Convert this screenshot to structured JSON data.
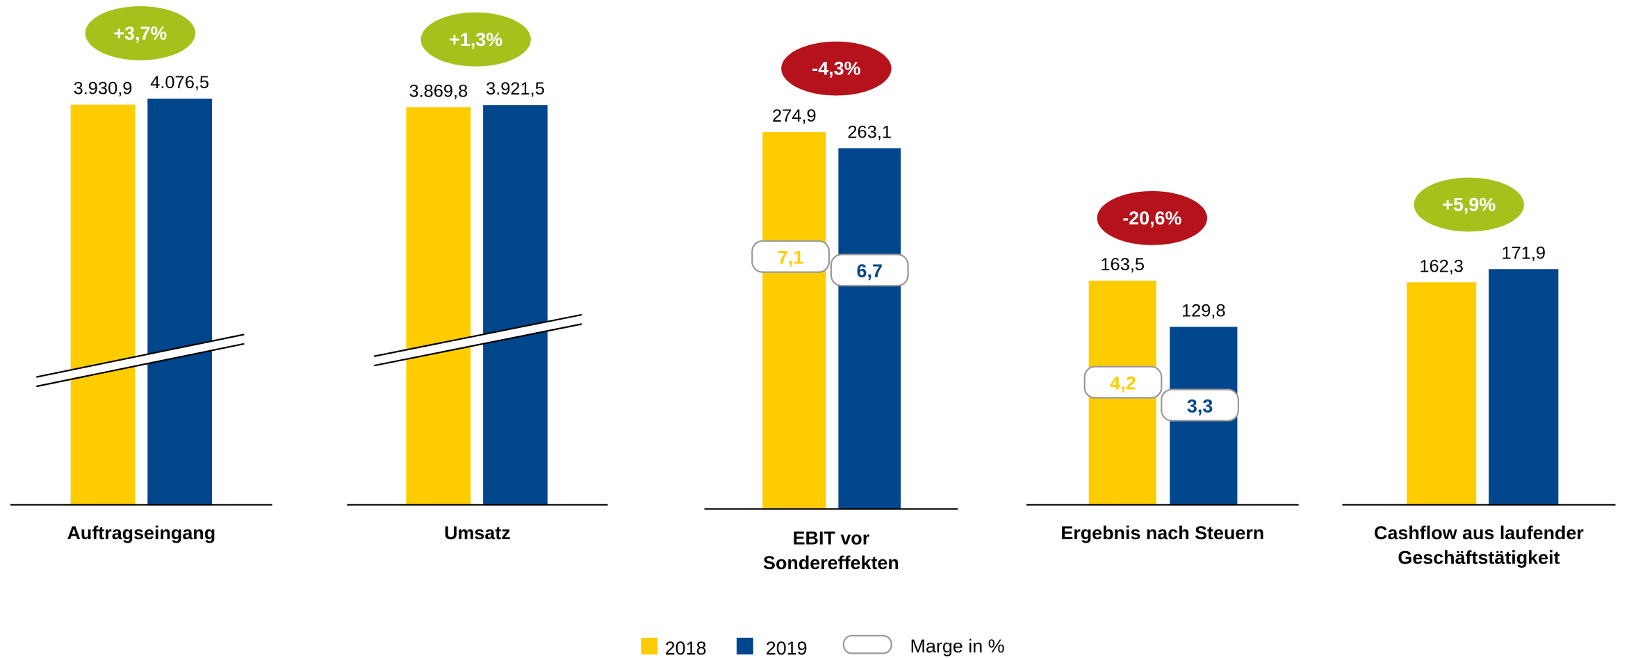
{
  "chart_data": [
    {
      "type": "bar",
      "title": [
        "Auftragseingang"
      ],
      "axis_break": true,
      "change": {
        "value": 3.7,
        "label": "+3,7%"
      },
      "change_color": "#A5C21C",
      "series": [
        {
          "name": "2018",
          "color": "#FFCC00",
          "values": [
            3930.9
          ],
          "value_labels": [
            "3.930,9"
          ]
        },
        {
          "name": "2019",
          "color": "#00468C",
          "values": [
            4076.5
          ],
          "value_labels": [
            "4.076,5"
          ]
        }
      ]
    },
    {
      "type": "bar",
      "title": [
        "Umsatz"
      ],
      "axis_break": true,
      "change": {
        "value": 1.3,
        "label": "+1,3%"
      },
      "change_color": "#A5C21C",
      "series": [
        {
          "name": "2018",
          "color": "#FFCC00",
          "values": [
            3869.8
          ],
          "value_labels": [
            "3.869,8"
          ]
        },
        {
          "name": "2019",
          "color": "#00468C",
          "values": [
            3921.5
          ],
          "value_labels": [
            "3.921,5"
          ]
        }
      ]
    },
    {
      "type": "bar",
      "title": [
        "EBIT vor",
        "Sondereffekten"
      ],
      "axis_break": false,
      "change": {
        "value": -4.3,
        "label": "-4,3%"
      },
      "change_color": "#B5121B",
      "series": [
        {
          "name": "2018",
          "color": "#FFCC00",
          "values": [
            274.9
          ],
          "value_labels": [
            "274,9"
          ],
          "margins": [
            7.1
          ],
          "margin_labels": [
            "7,1"
          ]
        },
        {
          "name": "2019",
          "color": "#00468C",
          "values": [
            263.1
          ],
          "value_labels": [
            "263,1"
          ],
          "margins": [
            6.7
          ],
          "margin_labels": [
            "6,7"
          ]
        }
      ]
    },
    {
      "type": "bar",
      "title": [
        "Ergebnis nach Steuern"
      ],
      "axis_break": false,
      "change": {
        "value": -20.6,
        "label": "-20,6%"
      },
      "change_color": "#B5121B",
      "series": [
        {
          "name": "2018",
          "color": "#FFCC00",
          "values": [
            163.5
          ],
          "value_labels": [
            "163,5"
          ],
          "margins": [
            4.2
          ],
          "margin_labels": [
            "4,2"
          ]
        },
        {
          "name": "2019",
          "color": "#00468C",
          "values": [
            129.8
          ],
          "value_labels": [
            "129,8"
          ],
          "margins": [
            3.3
          ],
          "margin_labels": [
            "3,3"
          ]
        }
      ]
    },
    {
      "type": "bar",
      "title": [
        "Cashflow aus laufender",
        "Geschäftstätigkeit"
      ],
      "axis_break": false,
      "change": {
        "value": 5.9,
        "label": "+5,9%"
      },
      "change_color": "#A5C21C",
      "series": [
        {
          "name": "2018",
          "color": "#FFCC00",
          "values": [
            162.3
          ],
          "value_labels": [
            "162,3"
          ]
        },
        {
          "name": "2019",
          "color": "#00468C",
          "values": [
            171.9
          ],
          "value_labels": [
            "171,9"
          ]
        }
      ]
    }
  ],
  "margin_legend": "Marge in %"
}
